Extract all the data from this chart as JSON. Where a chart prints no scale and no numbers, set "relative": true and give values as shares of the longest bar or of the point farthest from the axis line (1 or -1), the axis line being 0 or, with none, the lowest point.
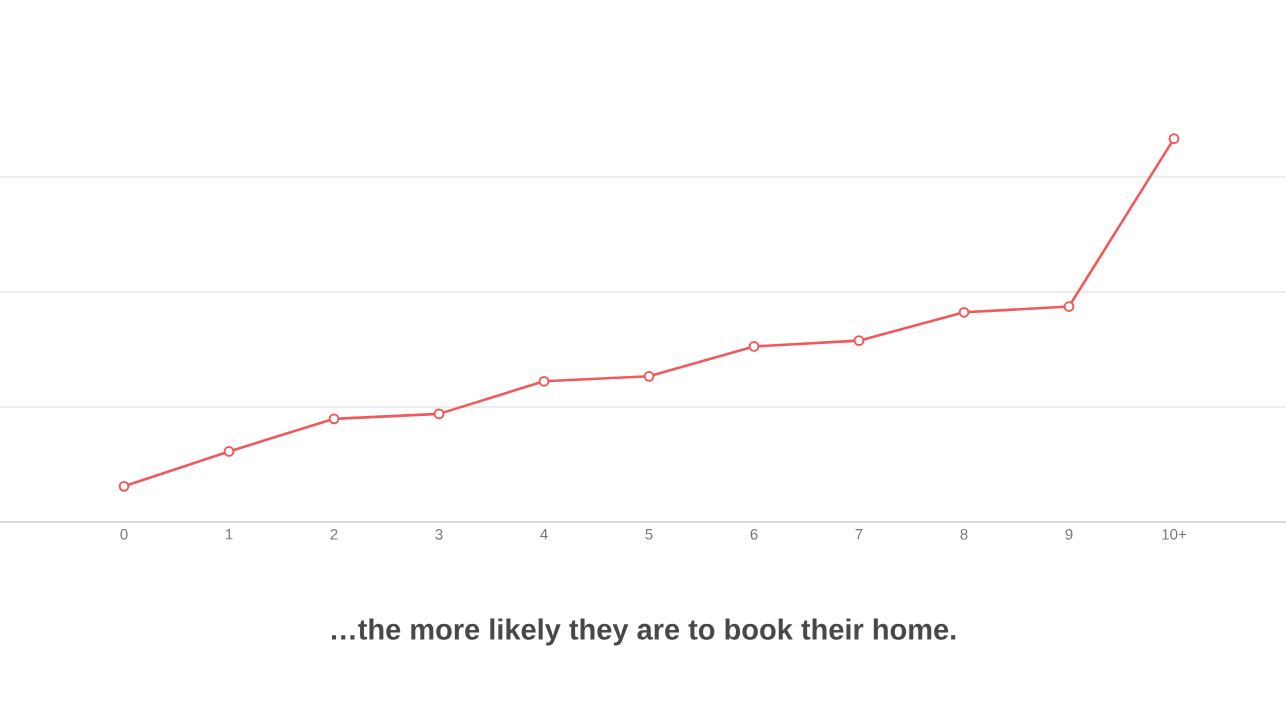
{
  "chart_data": {
    "type": "line",
    "relative": true,
    "categories": [
      "0",
      "1",
      "2",
      "3",
      "4",
      "5",
      "6",
      "7",
      "8",
      "9",
      "10+"
    ],
    "series": [
      {
        "color": "#f05a5a",
        "values": [
          0.093,
          0.184,
          0.269,
          0.282,
          0.367,
          0.38,
          0.458,
          0.473,
          0.547,
          0.562,
          1
        ]
      }
    ],
    "marker": "circle",
    "grid": "y",
    "annotations": [
      "…the more likely they are to book their home."
    ]
  }
}
